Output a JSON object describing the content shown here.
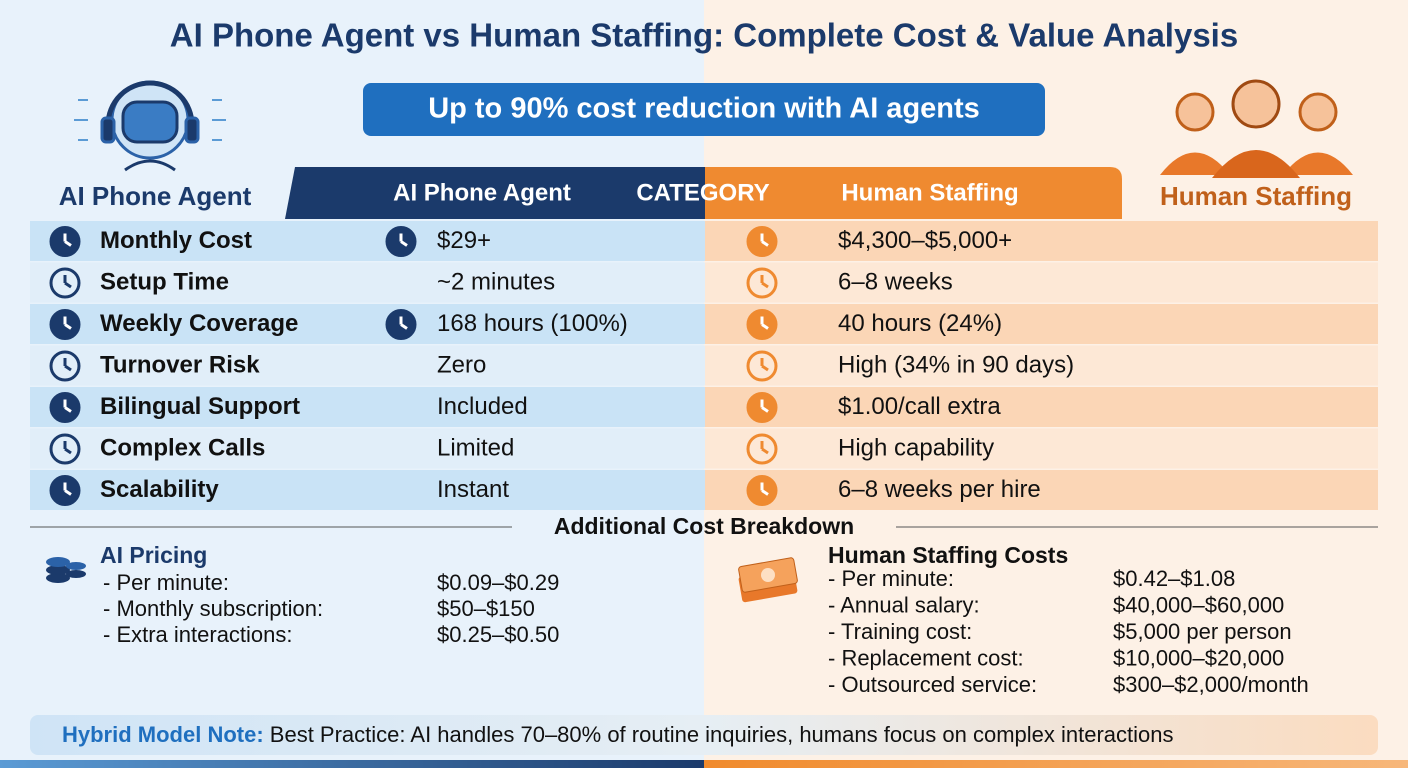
{
  "title": "AI Phone Agent vs Human Staffing: Complete Cost & Value Analysis",
  "banner": "Up to 90% cost reduction with AI agents",
  "left_label": "AI Phone Agent",
  "right_label": "Human Staffing",
  "table": {
    "columns": [
      "AI Phone Agent",
      "CATEGORY",
      "Human Staffing"
    ],
    "rows": [
      {
        "category": "Monthly Cost",
        "ai": "$29+",
        "human": "$4,300–$5,000+"
      },
      {
        "category": "Setup Time",
        "ai": "~2 minutes",
        "human": "6–8 weeks"
      },
      {
        "category": "Weekly Coverage",
        "ai": "168 hours (100%)",
        "human": "40 hours (24%)"
      },
      {
        "category": "Turnover Risk",
        "ai": "Zero",
        "human": "High (34% in 90 days)"
      },
      {
        "category": "Bilingual Support",
        "ai": "Included",
        "human": "$1.00/call extra"
      },
      {
        "category": "Complex Calls",
        "ai": "Limited",
        "human": "High capability"
      },
      {
        "category": "Scalability",
        "ai": "Instant",
        "human": "6–8 weeks per hire"
      }
    ]
  },
  "breakdown": {
    "title": "Additional Cost Breakdown",
    "ai": {
      "title": "AI Pricing",
      "items": [
        {
          "label": "- Per minute:",
          "value": "$0.09–$0.29"
        },
        {
          "label": "- Monthly subscription:",
          "value": "$50–$150"
        },
        {
          "label": "- Extra interactions:",
          "value": "$0.25–$0.50"
        }
      ]
    },
    "human": {
      "title": "Human Staffing Costs",
      "items": [
        {
          "label": "- Per minute:",
          "value": "$0.42–$1.08"
        },
        {
          "label": "- Annual salary:",
          "value": "$40,000–$60,000"
        },
        {
          "label": "- Training cost:",
          "value": "$5,000 per person"
        },
        {
          "label": "- Replacement cost:",
          "value": "$10,000–$20,000"
        },
        {
          "label": "- Outsourced service:",
          "value": "$300–$2,000/month"
        }
      ]
    }
  },
  "note": {
    "label": "Hybrid Model Note:",
    "text": " Best Practice: AI handles 70–80% of routine inquiries, humans focus on complex interactions"
  }
}
